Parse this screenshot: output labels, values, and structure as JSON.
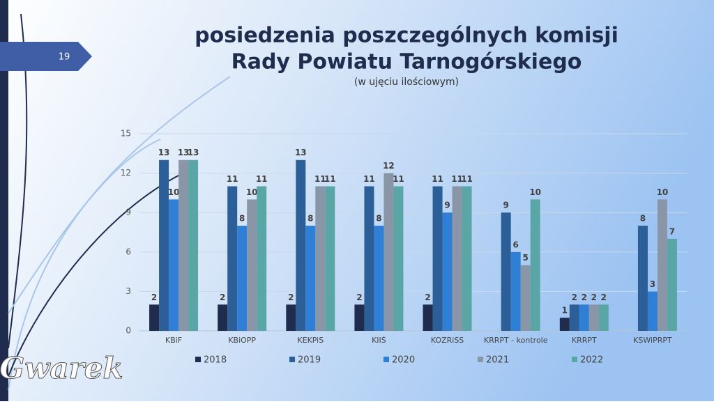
{
  "slide_number": "19",
  "watermark": "Gwarek",
  "chart_data": {
    "type": "bar",
    "title": [
      "posiedzenia poszczególnych komisji",
      "Rady Powiatu Tarnogórskiego"
    ],
    "subtitle": "(w ujęciu ilościowym)",
    "categories": [
      "KBiF",
      "KBiOPP",
      "KEKPiS",
      "KIIŚ",
      "KOZRiSS",
      "KRRPT - kontrole",
      "KRRPT",
      "KSWiPRPT"
    ],
    "series": [
      {
        "name": "2018",
        "color": "#1f2c4d",
        "values": [
          2,
          2,
          2,
          2,
          2,
          null,
          1,
          null
        ]
      },
      {
        "name": "2019",
        "color": "#2c5e97",
        "values": [
          13,
          11,
          13,
          11,
          11,
          9,
          2,
          8
        ]
      },
      {
        "name": "2020",
        "color": "#2f7fd6",
        "values": [
          10,
          8,
          8,
          8,
          9,
          6,
          2,
          3
        ]
      },
      {
        "name": "2021",
        "color": "#8896a8",
        "values": [
          13,
          10,
          11,
          12,
          11,
          5,
          2,
          10
        ]
      },
      {
        "name": "2022",
        "color": "#5aa5a6",
        "values": [
          13,
          11,
          11,
          11,
          11,
          10,
          2,
          7
        ]
      }
    ],
    "ylim": [
      0,
      15
    ],
    "yticks": [
      0,
      3,
      6,
      9,
      12,
      15
    ],
    "grid": true,
    "legend": "bottom"
  }
}
